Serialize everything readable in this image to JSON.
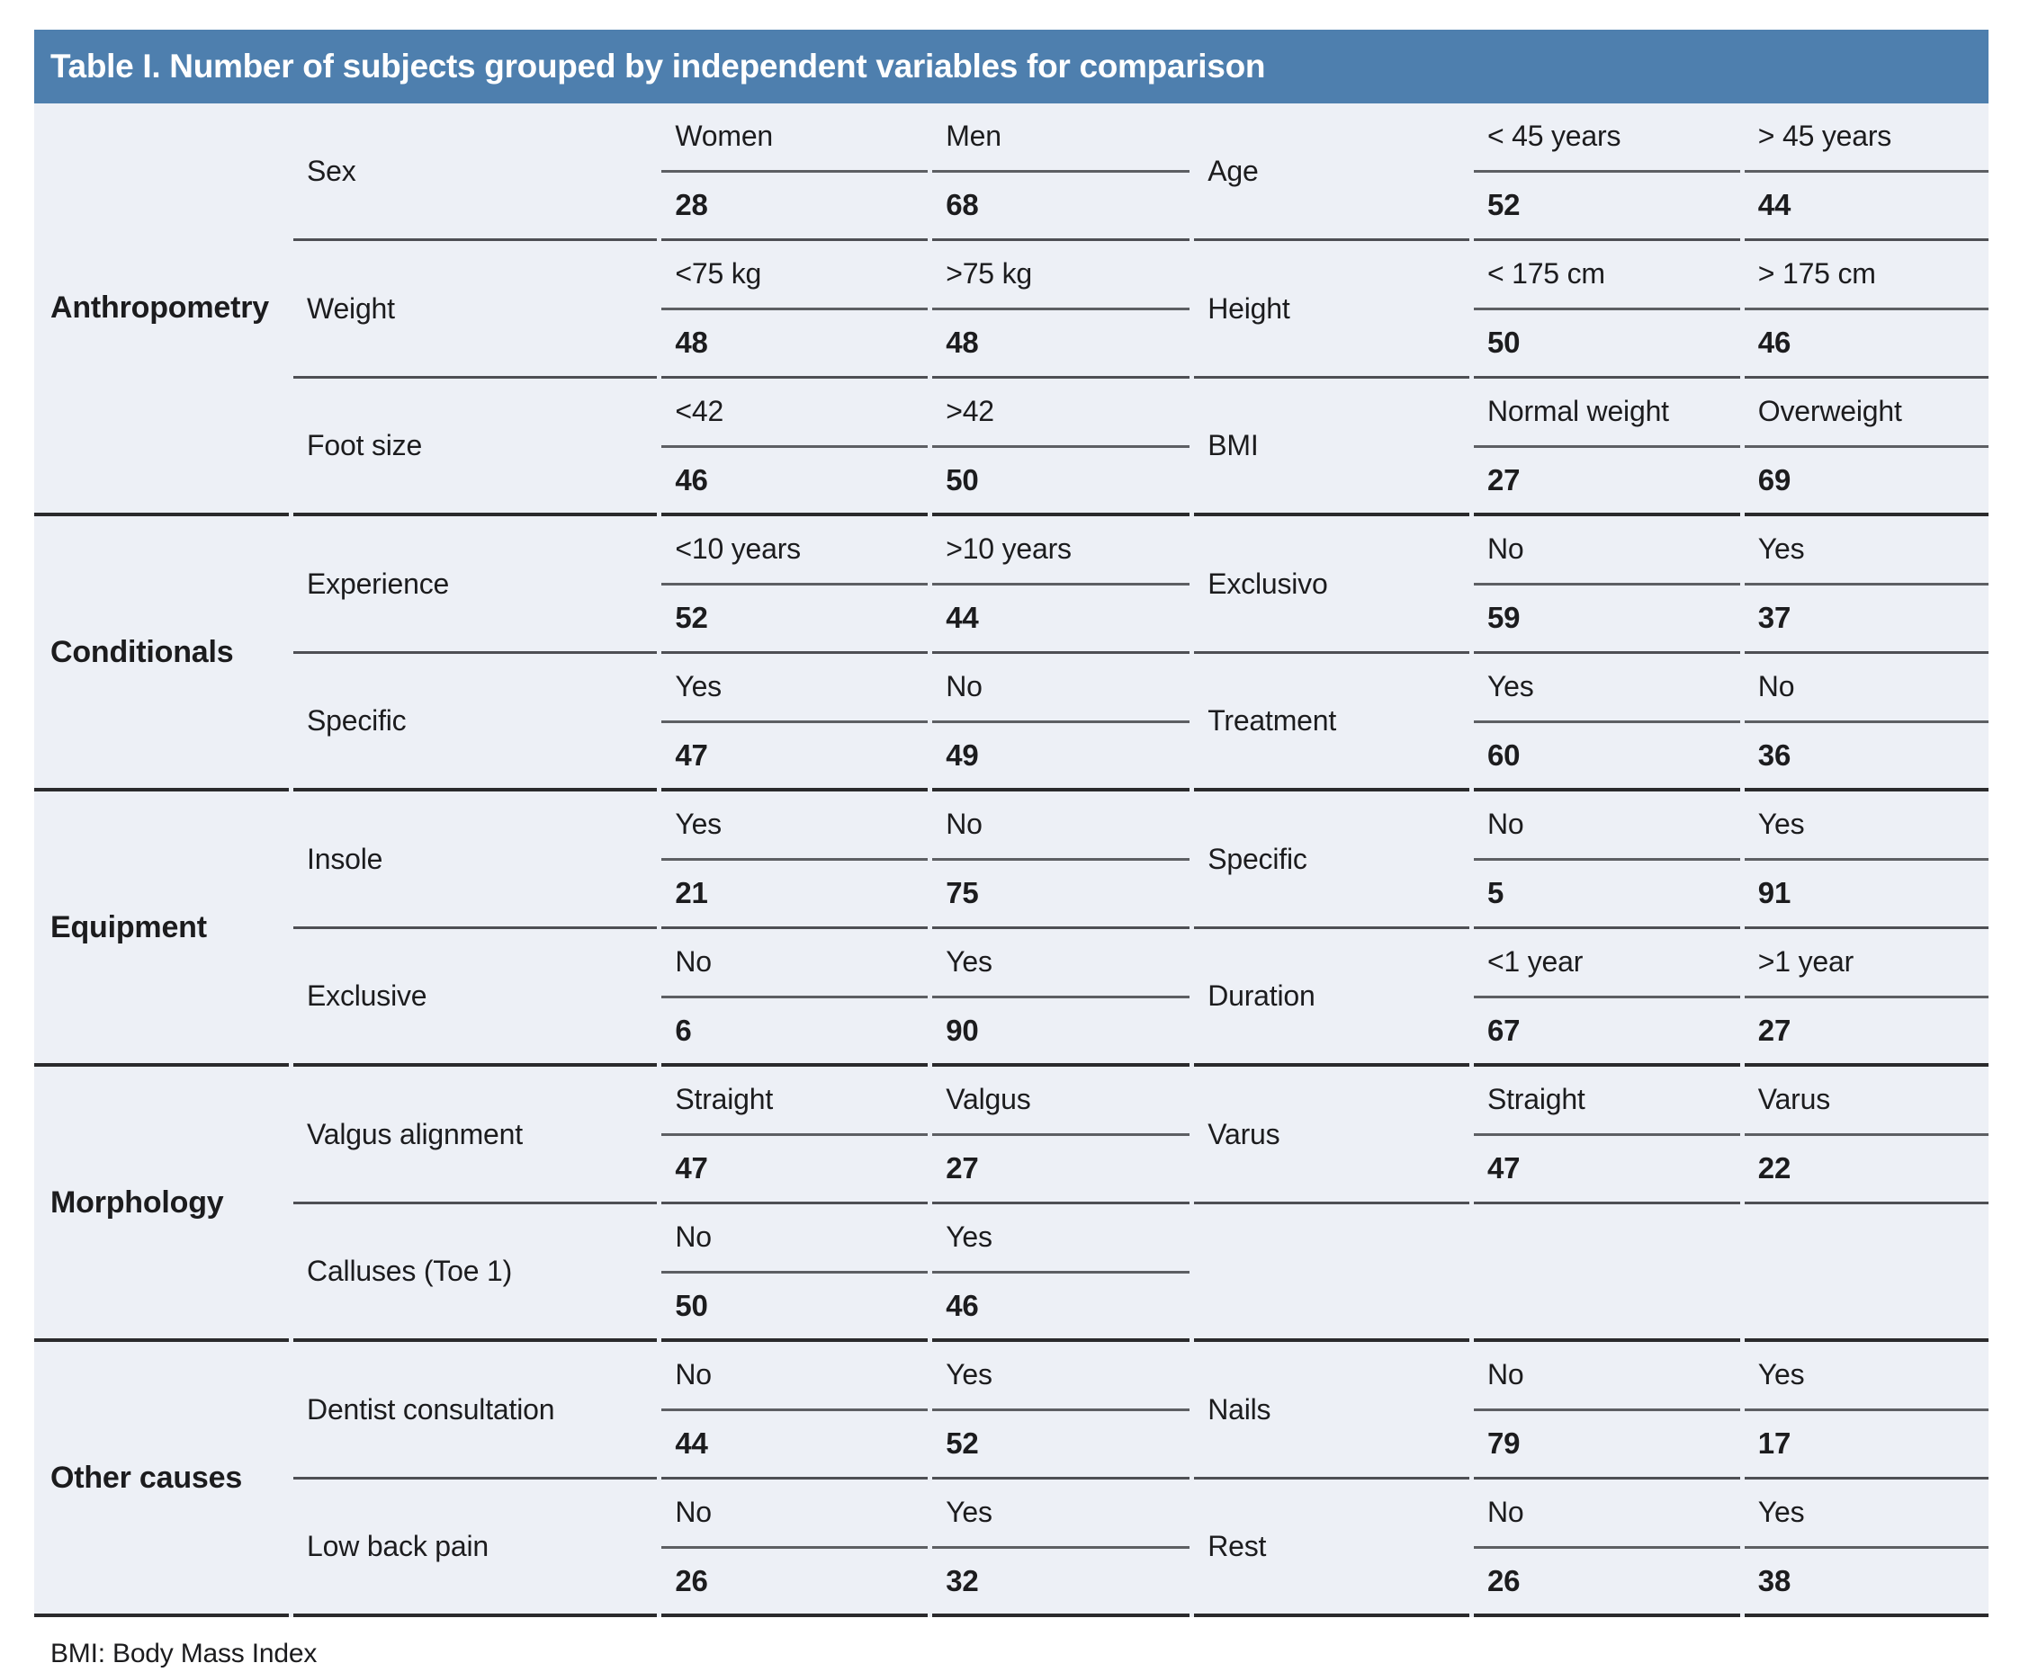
{
  "title": "Table I. Number of subjects grouped by independent variables for comparison",
  "footnote": "BMI: Body Mass Index",
  "colors": {
    "header_bg": "#4e7fae",
    "header_text": "#ffffff",
    "body_bg": "#edf0f6",
    "subrow_line": "#4e4f54",
    "group_line": "#2a2a2c",
    "label_line": "#5d5f63"
  },
  "groups": [
    {
      "name": "Anthropometry",
      "rows": [
        {
          "left": {
            "variable": "Sex",
            "labels": [
              "Women",
              "Men"
            ],
            "values": [
              "28",
              "68"
            ]
          },
          "right": {
            "variable": "Age",
            "labels": [
              "< 45 years",
              "> 45 years"
            ],
            "values": [
              "52",
              "44"
            ]
          }
        },
        {
          "left": {
            "variable": "Weight",
            "labels": [
              "<75 kg",
              ">75 kg"
            ],
            "values": [
              "48",
              "48"
            ]
          },
          "right": {
            "variable": "Height",
            "labels": [
              "< 175 cm",
              "> 175 cm"
            ],
            "values": [
              "50",
              "46"
            ]
          }
        },
        {
          "left": {
            "variable": "Foot size",
            "labels": [
              "<42",
              ">42"
            ],
            "values": [
              "46",
              "50"
            ]
          },
          "right": {
            "variable": "BMI",
            "labels": [
              "Normal weight",
              "Overweight"
            ],
            "values": [
              "27",
              "69"
            ]
          }
        }
      ]
    },
    {
      "name": "Conditionals",
      "rows": [
        {
          "left": {
            "variable": "Experience",
            "labels": [
              "<10 years",
              ">10 years"
            ],
            "values": [
              "52",
              "44"
            ]
          },
          "right": {
            "variable": "Exclusivo",
            "labels": [
              "No",
              "Yes"
            ],
            "values": [
              "59",
              "37"
            ]
          }
        },
        {
          "left": {
            "variable": "Specific",
            "labels": [
              "Yes",
              "No"
            ],
            "values": [
              "47",
              "49"
            ]
          },
          "right": {
            "variable": "Treatment",
            "labels": [
              "Yes",
              "No"
            ],
            "values": [
              "60",
              "36"
            ]
          }
        }
      ]
    },
    {
      "name": "Equipment",
      "rows": [
        {
          "left": {
            "variable": "Insole",
            "labels": [
              "Yes",
              "No"
            ],
            "values": [
              "21",
              "75"
            ]
          },
          "right": {
            "variable": "Specific",
            "labels": [
              "No",
              "Yes"
            ],
            "values": [
              "5",
              "91"
            ]
          }
        },
        {
          "left": {
            "variable": "Exclusive",
            "labels": [
              "No",
              "Yes"
            ],
            "values": [
              "6",
              "90"
            ]
          },
          "right": {
            "variable": "Duration",
            "labels": [
              "<1 year",
              ">1 year"
            ],
            "values": [
              "67",
              "27"
            ]
          }
        }
      ]
    },
    {
      "name": "Morphology",
      "rows": [
        {
          "left": {
            "variable": "Valgus alignment",
            "labels": [
              "Straight",
              "Valgus"
            ],
            "values": [
              "47",
              "27"
            ]
          },
          "right": {
            "variable": "Varus",
            "labels": [
              "Straight",
              "Varus"
            ],
            "values": [
              "47",
              "22"
            ]
          }
        },
        {
          "left": {
            "variable": "Calluses (Toe 1)",
            "labels": [
              "No",
              "Yes"
            ],
            "values": [
              "50",
              "46"
            ]
          },
          "right": null
        }
      ]
    },
    {
      "name": "Other causes",
      "rows": [
        {
          "left": {
            "variable": "Dentist consultation",
            "labels": [
              "No",
              "Yes"
            ],
            "values": [
              "44",
              "52"
            ]
          },
          "right": {
            "variable": "Nails",
            "labels": [
              "No",
              "Yes"
            ],
            "values": [
              "79",
              "17"
            ]
          }
        },
        {
          "left": {
            "variable": "Low back pain",
            "labels": [
              "No",
              "Yes"
            ],
            "values": [
              "26",
              "32"
            ]
          },
          "right": {
            "variable": "Rest",
            "labels": [
              "No",
              "Yes"
            ],
            "values": [
              "26",
              "38"
            ]
          }
        }
      ]
    }
  ]
}
